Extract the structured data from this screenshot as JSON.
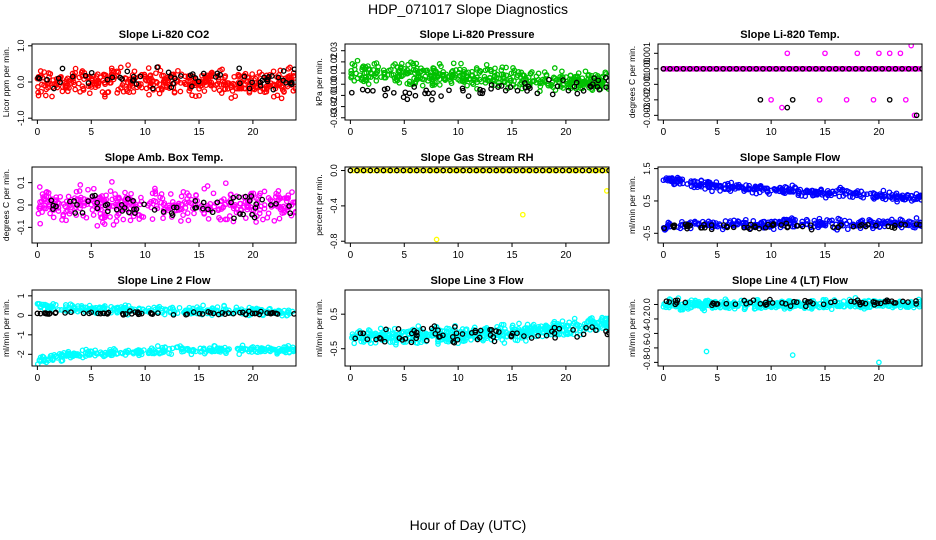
{
  "figure": {
    "title": "HDP_071017  Slope Diagnostics",
    "xlabel": "Hour of Day (UTC)"
  },
  "chart_data": [
    {
      "type": "scatter",
      "title": "Slope Li-820 CO2",
      "ylabel": "Licor ppm per min.",
      "xlim": [
        -0.5,
        24
      ],
      "xticks": [
        0,
        5,
        10,
        15,
        20
      ],
      "ylim": [
        -1.05,
        1.05
      ],
      "yticks": [
        -1,
        0,
        1
      ],
      "ytick_labels": [
        "-1.0",
        "0.0",
        "1.0"
      ],
      "series": [
        {
          "color": "#ff0000",
          "kind": "band",
          "center": [
            [
              0,
              0
            ],
            [
              24,
              0
            ]
          ],
          "spread": 0.35,
          "count": 420
        },
        {
          "color": "#000000",
          "kind": "band",
          "center": [
            [
              0,
              0.05
            ],
            [
              24,
              0.1
            ]
          ],
          "spread": 0.3,
          "count": 60
        }
      ]
    },
    {
      "type": "scatter",
      "title": "Slope Li-820 Pressure",
      "ylabel": "kPa per min.",
      "xlim": [
        -0.5,
        24
      ],
      "xticks": [
        0,
        5,
        10,
        15,
        20
      ],
      "ylim": [
        -0.032,
        0.036
      ],
      "yticks": [
        -0.03,
        -0.02,
        -0.01,
        0,
        0.01,
        0.02,
        0.03
      ],
      "ytick_labels": [
        "-0.03",
        "-0.02",
        "-0.01",
        "0.00",
        "0.01",
        "0.02",
        "0.03"
      ],
      "series": [
        {
          "color": "#00c000",
          "kind": "band",
          "center": [
            [
              0,
              0.01
            ],
            [
              8,
              0.008
            ],
            [
              16,
              0.005
            ],
            [
              24,
              0.002
            ]
          ],
          "spread": 0.009,
          "count": 420
        },
        {
          "color": "#000000",
          "kind": "band",
          "center": [
            [
              0,
              -0.008
            ],
            [
              12,
              -0.006
            ],
            [
              24,
              0.0
            ]
          ],
          "spread": 0.008,
          "count": 60
        }
      ]
    },
    {
      "type": "scatter",
      "title": "Slope Li-820 Temp.",
      "ylabel": "degrees C per min.",
      "xlim": [
        -0.5,
        24
      ],
      "xticks": [
        0,
        5,
        10,
        15,
        20
      ],
      "ylim": [
        -0.0033,
        0.0016
      ],
      "yticks": [
        -0.003,
        -0.002,
        -0.001,
        0,
        0.001
      ],
      "ytick_labels": [
        "-0.003",
        "-0.002",
        "-0.001",
        "0.000",
        "0.001"
      ],
      "series": [
        {
          "color": "#ff00ff",
          "kind": "line_points",
          "x_start": 0,
          "x_end": 24,
          "y": 0,
          "count": 150
        },
        {
          "color": "#000000",
          "kind": "line_points",
          "x_start": 0,
          "x_end": 24,
          "y": 0,
          "count": 40
        },
        {
          "color": "#ff00ff",
          "kind": "points",
          "x": [
            10,
            11,
            11.5,
            14.5,
            15,
            17,
            18,
            19.5,
            20,
            21,
            22,
            22.5,
            23,
            23.3
          ],
          "y": [
            -0.002,
            -0.0025,
            0.001,
            -0.002,
            0.001,
            -0.002,
            0.001,
            -0.002,
            0.001,
            0.001,
            0.001,
            -0.002,
            0.0015,
            -0.003
          ]
        },
        {
          "color": "#000000",
          "kind": "points",
          "x": [
            9,
            11.5,
            12,
            21,
            23.5
          ],
          "y": [
            -0.002,
            -0.0025,
            -0.002,
            -0.002,
            -0.003
          ]
        }
      ]
    },
    {
      "type": "scatter",
      "title": "Slope Amb. Box Temp.",
      "ylabel": "degrees C per min.",
      "xlim": [
        -0.5,
        24
      ],
      "xticks": [
        0,
        5,
        10,
        15,
        20
      ],
      "ylim": [
        -0.17,
        0.17
      ],
      "yticks": [
        -0.1,
        0,
        0.1
      ],
      "ytick_labels": [
        "-0.1",
        "0.0",
        "0.1"
      ],
      "series": [
        {
          "color": "#ff00ff",
          "kind": "band",
          "center": [
            [
              0,
              0
            ],
            [
              24,
              0
            ]
          ],
          "spread": 0.07,
          "count": 380
        },
        {
          "color": "#000000",
          "kind": "band",
          "center": [
            [
              0,
              0
            ],
            [
              24,
              0
            ]
          ],
          "spread": 0.05,
          "count": 60
        }
      ]
    },
    {
      "type": "scatter",
      "title": "Slope Gas Stream RH",
      "ylabel": "percent per min.",
      "xlim": [
        -0.5,
        24
      ],
      "xticks": [
        0,
        5,
        10,
        15,
        20
      ],
      "ylim": [
        -0.82,
        0.04
      ],
      "yticks": [
        -0.8,
        -0.4,
        0
      ],
      "ytick_labels": [
        "-0.8",
        "-0.4",
        "0.0"
      ],
      "series": [
        {
          "color": "#ffff00",
          "kind": "line_points",
          "x_start": 0,
          "x_end": 24,
          "y": 0,
          "count": 90
        },
        {
          "color": "#000000",
          "kind": "line_points",
          "x_start": 0,
          "x_end": 24,
          "y": 0,
          "count": 40
        },
        {
          "color": "#ffff00",
          "kind": "points",
          "x": [
            8,
            16,
            23.8
          ],
          "y": [
            -0.78,
            -0.5,
            -0.23
          ]
        }
      ]
    },
    {
      "type": "scatter",
      "title": "Slope Sample Flow",
      "ylabel": "ml/min per min.",
      "xlim": [
        -0.5,
        24
      ],
      "xticks": [
        0,
        5,
        10,
        15,
        20
      ],
      "ylim": [
        -0.8,
        1.55
      ],
      "yticks": [
        -0.5,
        0.5,
        1.5
      ],
      "ytick_labels": [
        "-0.5",
        "0.5",
        "1.5"
      ],
      "series": [
        {
          "color": "#0000ff",
          "kind": "band",
          "center": [
            [
              0,
              1.15
            ],
            [
              5,
              0.95
            ],
            [
              12,
              0.8
            ],
            [
              24,
              0.6
            ]
          ],
          "spread": 0.13,
          "count": 300
        },
        {
          "color": "#0000ff",
          "kind": "band",
          "center": [
            [
              0,
              -0.25
            ],
            [
              12,
              -0.2
            ],
            [
              24,
              -0.2
            ]
          ],
          "spread": 0.15,
          "count": 260
        },
        {
          "color": "#000000",
          "kind": "band",
          "center": [
            [
              0,
              -0.3
            ],
            [
              24,
              -0.25
            ]
          ],
          "spread": 0.1,
          "count": 60
        }
      ]
    },
    {
      "type": "scatter",
      "title": "Slope Line 2 Flow",
      "ylabel": "ml/min per min.",
      "xlim": [
        -0.5,
        24
      ],
      "xticks": [
        0,
        5,
        10,
        15,
        20
      ],
      "ylim": [
        -2.6,
        1.3
      ],
      "yticks": [
        -2,
        -1,
        0,
        1
      ],
      "ytick_labels": [
        "-2",
        "-1",
        "0",
        "1"
      ],
      "series": [
        {
          "color": "#00ffff",
          "kind": "band",
          "center": [
            [
              0,
              0.5
            ],
            [
              3,
              0.35
            ],
            [
              24,
              0.15
            ]
          ],
          "spread": 0.2,
          "count": 280
        },
        {
          "color": "#00ffff",
          "kind": "band",
          "center": [
            [
              0,
              -2.3
            ],
            [
              3,
              -2.05
            ],
            [
              12,
              -1.8
            ],
            [
              24,
              -1.75
            ]
          ],
          "spread": 0.2,
          "count": 280
        },
        {
          "color": "#000000",
          "kind": "band",
          "center": [
            [
              0,
              0.1
            ],
            [
              24,
              0.1
            ]
          ],
          "spread": 0.08,
          "count": 70
        }
      ]
    },
    {
      "type": "scatter",
      "title": "Slope Line 3 Flow",
      "ylabel": "ml/min per min.",
      "xlim": [
        -0.5,
        24
      ],
      "xticks": [
        0,
        5,
        10,
        15,
        20
      ],
      "ylim": [
        -1.0,
        1.2
      ],
      "yticks": [
        -0.5,
        0.5
      ],
      "ytick_labels": [
        "-0.5",
        "0.5"
      ],
      "series": [
        {
          "color": "#00ffff",
          "kind": "band",
          "center": [
            [
              0,
              -0.15
            ],
            [
              10,
              -0.1
            ],
            [
              17,
              0.0
            ],
            [
              21,
              0.15
            ],
            [
              24,
              0.25
            ]
          ],
          "spread": 0.22,
          "count": 460
        },
        {
          "color": "#000000",
          "kind": "band",
          "center": [
            [
              0,
              -0.15
            ],
            [
              24,
              0.0
            ]
          ],
          "spread": 0.22,
          "count": 70
        }
      ]
    },
    {
      "type": "scatter",
      "title": "Slope Line 4 (LT) Flow",
      "ylabel": "ml/min per min.",
      "xlim": [
        -0.5,
        24
      ],
      "xticks": [
        0,
        5,
        10,
        15,
        20
      ],
      "ylim": [
        -0.85,
        0.2
      ],
      "yticks": [
        -0.8,
        -0.6,
        -0.4,
        -0.2,
        0
      ],
      "ytick_labels": [
        "-0.8",
        "-0.6",
        "-0.4",
        "-0.2",
        "0.0"
      ],
      "series": [
        {
          "color": "#00ffff",
          "kind": "band",
          "center": [
            [
              0,
              0.0
            ],
            [
              24,
              0.0
            ]
          ],
          "spread": 0.06,
          "count": 440
        },
        {
          "color": "#000000",
          "kind": "band",
          "center": [
            [
              0,
              0.02
            ],
            [
              24,
              0.03
            ]
          ],
          "spread": 0.04,
          "count": 60
        },
        {
          "color": "#00ffff",
          "kind": "points",
          "x": [
            4,
            12,
            20
          ],
          "y": [
            -0.65,
            -0.7,
            -0.8
          ]
        }
      ]
    }
  ]
}
